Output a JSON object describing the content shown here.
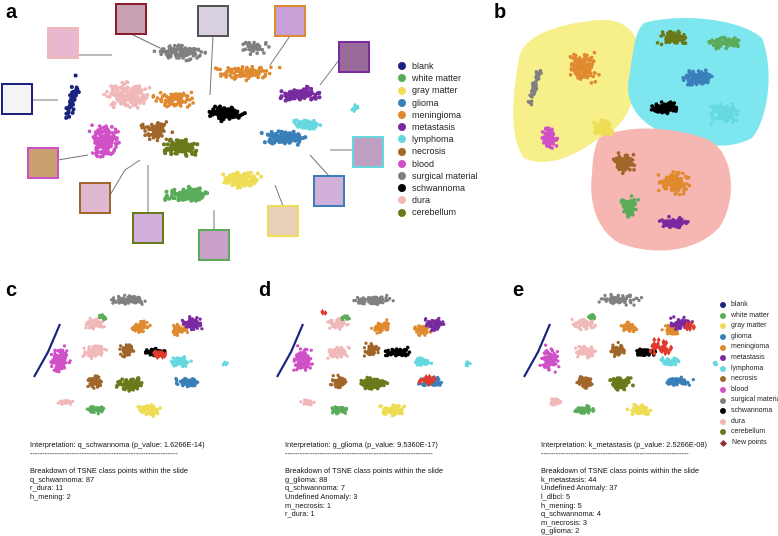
{
  "panel_labels": {
    "a": "a",
    "b": "b",
    "c": "c",
    "d": "d",
    "e": "e"
  },
  "legend": {
    "classes": [
      {
        "label": "blank",
        "color": "#1a237e"
      },
      {
        "label": "white matter",
        "color": "#5aac5a"
      },
      {
        "label": "gray matter",
        "color": "#eedd55"
      },
      {
        "label": "glioma",
        "color": "#3a7fb8"
      },
      {
        "label": "meningioma",
        "color": "#e08a30"
      },
      {
        "label": "metastasis",
        "color": "#7a2aa0"
      },
      {
        "label": "lymphoma",
        "color": "#66d8e0"
      },
      {
        "label": "necrosis",
        "color": "#a0662a"
      },
      {
        "label": "blood",
        "color": "#d050c8"
      },
      {
        "label": "surgical material",
        "color": "#808080"
      },
      {
        "label": "schwannoma",
        "color": "#000000"
      },
      {
        "label": "dura",
        "color": "#f0b8b8"
      },
      {
        "label": "cerebellum",
        "color": "#6a7a1a"
      }
    ],
    "new_points": {
      "label": "New points",
      "color": "#8a3030"
    }
  },
  "groups_b": [
    {
      "name": "yellow",
      "color": "#f7ef8a"
    },
    {
      "name": "cyan",
      "color": "#7ee6ef"
    },
    {
      "name": "pink",
      "color": "#f6b7b2"
    }
  ],
  "interpretations": {
    "c": {
      "title": "Interpretation: q_schwannoma (p_value: 1.6266E-14)",
      "rule": "------------------------------------------------------------",
      "heading": "Breakdown of TSNE class points within the slide",
      "lines": [
        "q_schwannoma: 87",
        "r_dura: 11",
        "h_mening: 2"
      ]
    },
    "d": {
      "title": "Interpretation: g_glioma (p_value: 9.5360E-17)",
      "rule": "------------------------------------------------------------",
      "heading": "Breakdown of TSNE class points within the slide",
      "lines": [
        "g_glioma: 88",
        "q_schwannoma: 7",
        "Undefined Anomaly: 3",
        "m_necrosis: 1",
        "r_dura: 1"
      ]
    },
    "e": {
      "title": "Interpretation: k_metastasis (p_value: 2.5266E-08)",
      "rule": "------------------------------------------------------------",
      "heading": "Breakdown of TSNE class points within the slide",
      "lines": [
        "k_metastasis: 44",
        "Undefined Anomaly: 37",
        "l_dlbcl: 5",
        "h_mening: 5",
        "q_schwannoma: 4",
        "m_necrosis: 3",
        "g_glioma: 2"
      ]
    }
  }
}
